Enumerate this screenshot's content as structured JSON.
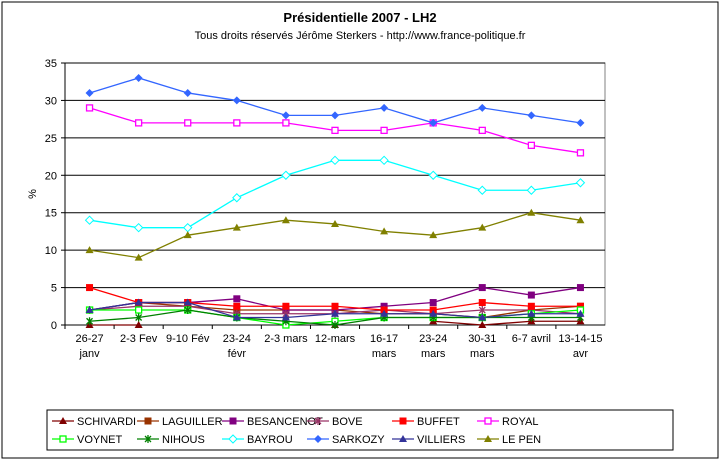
{
  "chart_data": {
    "type": "line",
    "title": "Présidentielle 2007 - LH2",
    "subtitle": "Tous droits réservés Jérôme Sterkers - http://www.france-politique.fr",
    "xlabel": "",
    "ylabel": "%",
    "ylim": [
      0,
      35
    ],
    "yticks": [
      0,
      5,
      10,
      15,
      20,
      25,
      30,
      35
    ],
    "grid": true,
    "legend": "bottom",
    "categories": [
      [
        "26-27",
        "janv"
      ],
      [
        "2-3 Fev",
        ""
      ],
      [
        "9-10 Fév",
        ""
      ],
      [
        "23-24",
        "févr"
      ],
      [
        "2-3 mars",
        ""
      ],
      [
        "12-mars",
        ""
      ],
      [
        "16-17",
        "mars"
      ],
      [
        "23-24",
        "mars"
      ],
      [
        "30-31",
        "mars"
      ],
      [
        "6-7 avril",
        ""
      ],
      [
        "13-14-15",
        "avr"
      ]
    ],
    "series": [
      {
        "name": "SCHIVARDI",
        "color": "#800000",
        "marker": "triangle",
        "values": [
          0,
          0,
          null,
          null,
          null,
          0,
          null,
          0.5,
          0,
          0.5,
          0.5
        ]
      },
      {
        "name": "LAGUILLER",
        "color": "#993300",
        "marker": "square",
        "values": [
          2,
          3,
          2.5,
          2,
          2,
          2,
          1.5,
          1.5,
          1,
          2,
          2.5
        ]
      },
      {
        "name": "BESANCENOT",
        "color": "#800080",
        "marker": "square",
        "values": [
          2,
          3,
          3,
          3.5,
          2,
          2,
          2.5,
          3,
          5,
          4,
          5
        ]
      },
      {
        "name": "BOVE",
        "color": "#993366",
        "marker": "star",
        "values": [
          2,
          2.5,
          2.5,
          1.5,
          1.5,
          1.5,
          2,
          1.5,
          2,
          2,
          1.5
        ]
      },
      {
        "name": "BUFFET",
        "color": "#FF0000",
        "marker": "square",
        "values": [
          5,
          3,
          3,
          2.5,
          2.5,
          2.5,
          2,
          2,
          3,
          2.5,
          2.5
        ]
      },
      {
        "name": "ROYAL",
        "color": "#FF00FF",
        "marker": "hsquare",
        "values": [
          29,
          27,
          27,
          27,
          27,
          26,
          26,
          27,
          26,
          24,
          23
        ]
      },
      {
        "name": "VOYNET",
        "color": "#00FF00",
        "marker": "hsquare",
        "values": [
          2,
          2,
          2,
          1,
          0,
          0.5,
          1,
          1,
          1,
          1.5,
          2
        ]
      },
      {
        "name": "NIHOUS",
        "color": "#008000",
        "marker": "star",
        "values": [
          0.5,
          1,
          2,
          1,
          0.5,
          0,
          1,
          1,
          1,
          1,
          1
        ]
      },
      {
        "name": "BAYROU",
        "color": "#00FFFF",
        "marker": "hdiamond",
        "values": [
          14,
          13,
          13,
          17,
          20,
          22,
          22,
          20,
          18,
          18,
          19
        ]
      },
      {
        "name": "SARKOZY",
        "color": "#3366FF",
        "marker": "diamond",
        "values": [
          31,
          33,
          31,
          30,
          28,
          28,
          29,
          27,
          29,
          28,
          27
        ]
      },
      {
        "name": "VILLIERS",
        "color": "#333399",
        "marker": "triangle",
        "values": [
          2,
          3,
          3,
          1,
          1,
          1.5,
          1.5,
          1.5,
          1,
          1.5,
          1.5
        ]
      },
      {
        "name": "LE PEN",
        "color": "#808000",
        "marker": "triangle",
        "values": [
          10,
          9,
          12,
          13,
          14,
          13.5,
          12.5,
          12,
          13,
          15,
          14
        ]
      }
    ]
  }
}
